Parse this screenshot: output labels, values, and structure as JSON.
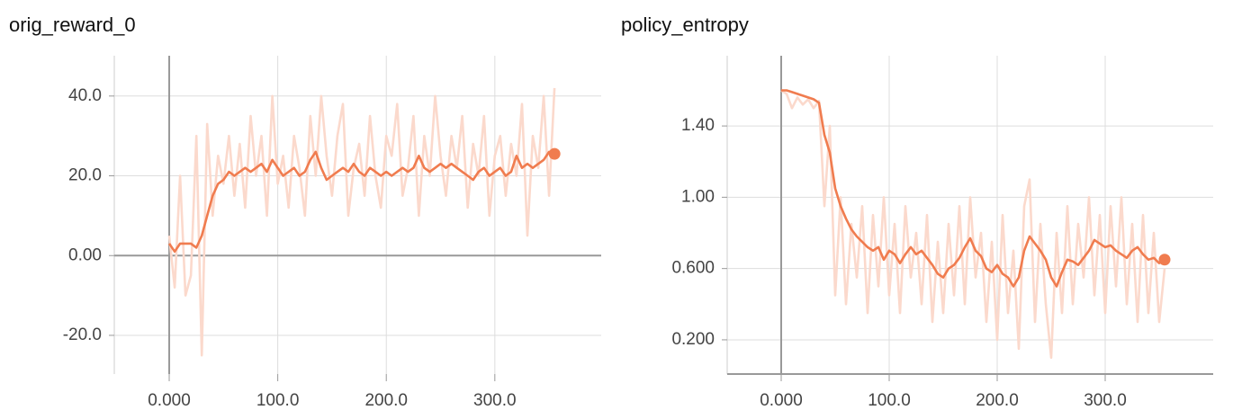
{
  "chart_data": [
    {
      "type": "line",
      "title": "orig_reward_0",
      "x": [
        0,
        5,
        10,
        15,
        20,
        25,
        30,
        35,
        40,
        45,
        50,
        55,
        60,
        65,
        70,
        75,
        80,
        85,
        90,
        95,
        100,
        105,
        110,
        115,
        120,
        125,
        130,
        135,
        140,
        145,
        150,
        155,
        160,
        165,
        170,
        175,
        180,
        185,
        190,
        195,
        200,
        205,
        210,
        215,
        220,
        225,
        230,
        235,
        240,
        245,
        250,
        255,
        260,
        265,
        270,
        275,
        280,
        285,
        290,
        295,
        300,
        305,
        310,
        315,
        320,
        325,
        330,
        335,
        340,
        345,
        350,
        355
      ],
      "series": [
        {
          "color": "#fbd9cc",
          "values": [
            5,
            -8,
            20,
            -10,
            -5,
            30,
            -25,
            33,
            10,
            25,
            18,
            30,
            15,
            28,
            12,
            35,
            20,
            30,
            10,
            40,
            18,
            25,
            12,
            30,
            22,
            10,
            35,
            20,
            40,
            25,
            15,
            30,
            38,
            10,
            22,
            28,
            15,
            35,
            20,
            12,
            30,
            25,
            38,
            15,
            22,
            35,
            10,
            30,
            20,
            40,
            25,
            15,
            30,
            22,
            35,
            12,
            28,
            20,
            35,
            10,
            25,
            30,
            15,
            28,
            20,
            38,
            5,
            30,
            22,
            40,
            15,
            42
          ]
        },
        {
          "color": "#f07c4f",
          "last_marker": true,
          "values": [
            3,
            1,
            3,
            3,
            3,
            2,
            5,
            10,
            15,
            18,
            19,
            21,
            20,
            21,
            22,
            21,
            22,
            23,
            21,
            24,
            22,
            20,
            21,
            22,
            20,
            21,
            24,
            26,
            22,
            19,
            20,
            21,
            22,
            21,
            23,
            21,
            20,
            22,
            21,
            20,
            21,
            20,
            21,
            22,
            21,
            22,
            25,
            22,
            21,
            22,
            23,
            22,
            23,
            22,
            21,
            20,
            19,
            21,
            22,
            20,
            21,
            22,
            20,
            21,
            25,
            22,
            23,
            22,
            23,
            24,
            26,
            25.5
          ]
        }
      ],
      "xlim": [
        -50.6,
        398
      ],
      "ylim": [
        -29.7,
        50.1
      ],
      "xticks": [
        {
          "value": 0,
          "label": "0.000"
        },
        {
          "value": 100,
          "label": "100.0"
        },
        {
          "value": 200,
          "label": "200.0"
        },
        {
          "value": 300,
          "label": "300.0"
        }
      ],
      "yticks": [
        {
          "value": -20,
          "label": "-20.0"
        },
        {
          "value": 0,
          "label": "0.00"
        },
        {
          "value": 20,
          "label": "20.0"
        },
        {
          "value": 40,
          "label": "40.0"
        }
      ],
      "grid": true
    },
    {
      "type": "line",
      "title": "policy_entropy",
      "x": [
        0,
        5,
        10,
        15,
        20,
        25,
        30,
        35,
        40,
        45,
        50,
        55,
        60,
        65,
        70,
        75,
        80,
        85,
        90,
        95,
        100,
        105,
        110,
        115,
        120,
        125,
        130,
        135,
        140,
        145,
        150,
        155,
        160,
        165,
        170,
        175,
        180,
        185,
        190,
        195,
        200,
        205,
        210,
        215,
        220,
        225,
        230,
        235,
        240,
        245,
        250,
        255,
        260,
        265,
        270,
        275,
        280,
        285,
        290,
        295,
        300,
        305,
        310,
        315,
        320,
        325,
        330,
        335,
        340,
        345,
        350,
        355
      ],
      "series": [
        {
          "color": "#fbd9cc",
          "values": [
            1.6,
            1.58,
            1.5,
            1.56,
            1.52,
            1.55,
            1.5,
            1.54,
            0.95,
            1.4,
            0.45,
            1.0,
            0.4,
            0.85,
            0.55,
            0.95,
            0.35,
            0.9,
            0.5,
            1.0,
            0.45,
            0.85,
            0.35,
            0.95,
            0.55,
            0.8,
            0.4,
            0.9,
            0.3,
            0.75,
            0.35,
            0.85,
            0.45,
            0.95,
            0.4,
            1.0,
            0.55,
            0.8,
            0.3,
            0.75,
            0.2,
            0.9,
            0.35,
            0.7,
            0.15,
            0.95,
            1.1,
            0.3,
            0.85,
            0.4,
            0.1,
            0.8,
            0.35,
            0.95,
            0.4,
            0.85,
            0.55,
            1.0,
            0.45,
            0.9,
            0.35,
            0.95,
            0.5,
            1.0,
            0.4,
            0.85,
            0.3,
            0.9,
            0.35,
            0.8,
            0.3,
            0.6
          ]
        },
        {
          "color": "#f07c4f",
          "last_marker": true,
          "values": [
            1.6,
            1.6,
            1.59,
            1.58,
            1.57,
            1.56,
            1.55,
            1.53,
            1.35,
            1.25,
            1.05,
            0.95,
            0.88,
            0.82,
            0.78,
            0.75,
            0.72,
            0.7,
            0.72,
            0.65,
            0.7,
            0.68,
            0.63,
            0.68,
            0.72,
            0.68,
            0.7,
            0.66,
            0.62,
            0.57,
            0.55,
            0.6,
            0.62,
            0.66,
            0.72,
            0.77,
            0.7,
            0.67,
            0.6,
            0.58,
            0.62,
            0.57,
            0.55,
            0.5,
            0.55,
            0.7,
            0.78,
            0.74,
            0.7,
            0.65,
            0.55,
            0.5,
            0.58,
            0.65,
            0.64,
            0.62,
            0.66,
            0.7,
            0.76,
            0.74,
            0.72,
            0.73,
            0.7,
            0.68,
            0.66,
            0.7,
            0.72,
            0.68,
            0.65,
            0.66,
            0.63,
            0.65
          ]
        }
      ],
      "xlim": [
        -50,
        400
      ],
      "ylim": [
        0.008,
        1.794
      ],
      "xticks": [
        {
          "value": 0,
          "label": "0.000"
        },
        {
          "value": 100,
          "label": "100.0"
        },
        {
          "value": 200,
          "label": "200.0"
        },
        {
          "value": 300,
          "label": "300.0"
        }
      ],
      "yticks": [
        {
          "value": 0.2,
          "label": "0.200"
        },
        {
          "value": 0.6,
          "label": "0.600"
        },
        {
          "value": 1.0,
          "label": "1.00"
        },
        {
          "value": 1.4,
          "label": "1.40"
        }
      ],
      "grid": true
    }
  ]
}
